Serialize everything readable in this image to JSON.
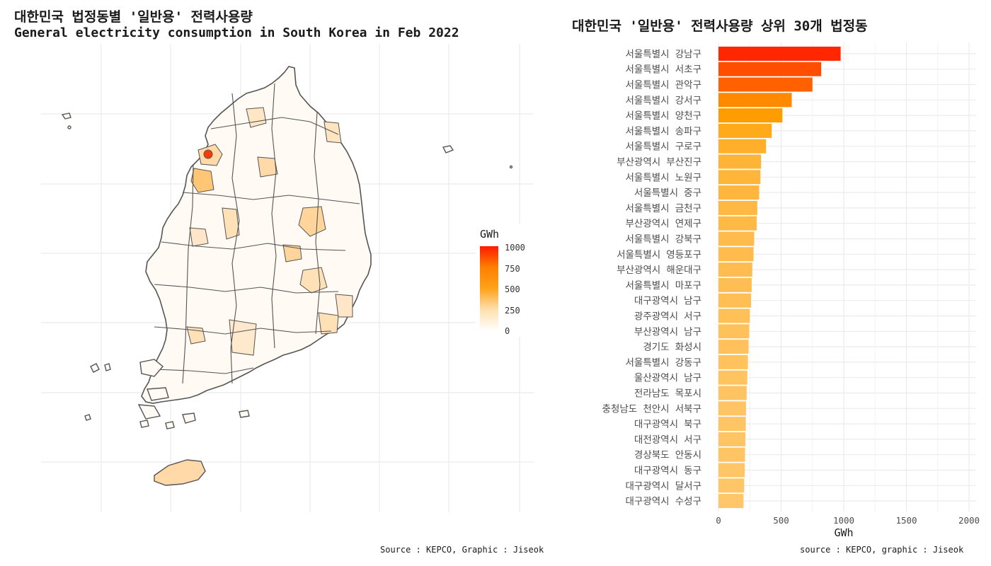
{
  "left_panel": {
    "title_kr": "대한민국 법정동별 '일반용' 전력사용량",
    "title_en": "General electricity consumption in South Korea in Feb 2022",
    "caption": "Source : KEPCO, Graphic : Jiseok",
    "legend": {
      "title": "GWh",
      "ticks": [
        "1000",
        "750",
        "500",
        "250",
        "0"
      ],
      "colors": [
        "#ffffff",
        "#ffe0b0",
        "#ffa31a",
        "#ff8000",
        "#ff1a00"
      ]
    }
  },
  "right_panel": {
    "caption": "source : KEPCO, graphic : Jiseok"
  },
  "colors": {
    "bar_max": "#ff2000",
    "bar_mid": "#ffa000",
    "bar_min": "#ffe0b0",
    "map_border": "#555555",
    "grid": "#ebebeb"
  },
  "chart_data": [
    {
      "type": "bar",
      "orientation": "horizontal",
      "title": "대한민국 '일반용' 전력사용량 상위 30개 법정동",
      "xlabel": "GWh",
      "ylabel": "",
      "xlim": [
        0,
        2000
      ],
      "xticks": [
        0,
        500,
        1000,
        1500,
        2000
      ],
      "grid": true,
      "categories": [
        "서울특별시 강남구",
        "서울특별시 서초구",
        "서울특별시 관악구",
        "서울특별시 강서구",
        "서울특별시 양천구",
        "서울특별시 송파구",
        "서울특별시 구로구",
        "부산광역시 부산진구",
        "서울특별시 노원구",
        "서울특별시 중구",
        "서울특별시 금천구",
        "부산광역시 연제구",
        "서울특별시 강북구",
        "서울특별시 영등포구",
        "부산광역시 해운대구",
        "서울특별시 마포구",
        "대구광역시 남구",
        "광주광역시 서구",
        "부산광역시 남구",
        "경기도 화성시",
        "서울특별시 강동구",
        "울산광역시 남구",
        "전라남도 목포시",
        "충청남도 천안시 서북구",
        "대구광역시 북구",
        "대전광역시 서구",
        "경상북도 안동시",
        "대구광역시 동구",
        "대구광역시 달서구",
        "대구광역시 수성구"
      ],
      "values": [
        975,
        820,
        750,
        585,
        510,
        425,
        380,
        340,
        335,
        325,
        310,
        305,
        285,
        280,
        270,
        265,
        260,
        250,
        245,
        240,
        235,
        230,
        225,
        220,
        218,
        215,
        212,
        210,
        205,
        200
      ]
    },
    {
      "type": "heatmap",
      "title": "General electricity consumption in South Korea in Feb 2022",
      "legend_title": "GWh",
      "scale_range": [
        0,
        1000
      ],
      "legend_ticks": [
        0,
        250,
        500,
        750,
        1000
      ],
      "regions_shown": "법정동 choropleth of South Korea"
    }
  ]
}
